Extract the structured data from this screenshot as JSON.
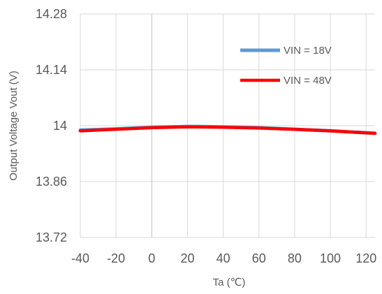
{
  "chart_data": {
    "type": "line",
    "xlabel": "Ta (℃)",
    "ylabel": "Output Voltage Vout (V)",
    "xlim": [
      -40,
      125
    ],
    "ylim": [
      13.72,
      14.28
    ],
    "xticks": [
      -40,
      -20,
      0,
      20,
      40,
      60,
      80,
      100,
      120
    ],
    "yticks": [
      13.72,
      13.86,
      14,
      14.14,
      14.28
    ],
    "ytick_labels": [
      "13.72",
      "13.86",
      "14",
      "14.14",
      "14.28"
    ],
    "grid": true,
    "legend_position": "top-right",
    "series": [
      {
        "name": "VIN = 18V",
        "color": "#5b9bd5",
        "x": [
          -40,
          -20,
          0,
          20,
          25,
          40,
          60,
          80,
          100,
          125
        ],
        "y": [
          13.989,
          13.992,
          13.996,
          13.998,
          13.998,
          13.997,
          13.995,
          13.991,
          13.987,
          13.981
        ]
      },
      {
        "name": "VIN = 48V",
        "color": "#ff0000",
        "x": [
          -40,
          -20,
          0,
          20,
          25,
          40,
          60,
          80,
          100,
          125
        ],
        "y": [
          13.987,
          13.991,
          13.995,
          13.997,
          13.997,
          13.996,
          13.994,
          13.991,
          13.987,
          13.981
        ]
      }
    ]
  }
}
